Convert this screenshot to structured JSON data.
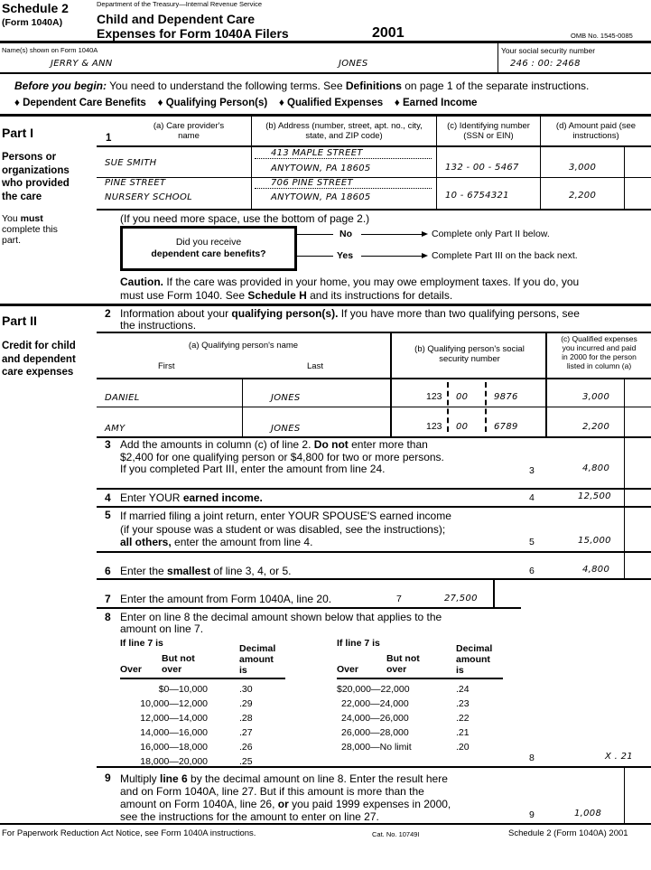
{
  "header": {
    "schedule": "Schedule 2",
    "form": "(Form 1040A)",
    "agency": "Department of the Treasury—Internal Revenue Service",
    "title_line1": "Child and Dependent Care",
    "title_line2": "Expenses for Form 1040A Filers",
    "year": "2001",
    "omb": "OMB No. 1545-0085"
  },
  "taxpayer": {
    "name_label": "Name(s) shown on Form 1040A",
    "first": "JERRY & ANN",
    "last": "JONES",
    "ssn_label": "Your social security number",
    "ssn": "246 : 00: 2468"
  },
  "intro": {
    "lead": "Before you begin:",
    "text1": " You need to understand the following terms. See ",
    "defs": "Definitions",
    "text2": " on page 1 of the separate instructions.",
    "terms": [
      "Dependent Care Benefits",
      "Qualifying Person(s)",
      "Qualified Expenses",
      "Earned Income"
    ]
  },
  "part1": {
    "title": "Part I",
    "subtitle": [
      "Persons or",
      "organizations",
      "who provided",
      "the care"
    ],
    "note": [
      "You must",
      "complete this",
      "part."
    ],
    "line_no": "1",
    "columns": [
      "(a) Care provider's name",
      "(b) Address (number, street, apt. no., city, state, and ZIP code)",
      "(c) Identifying number (SSN or EIN)",
      "(d) Amount paid (see instructions)"
    ],
    "rows": [
      {
        "name1": "SUE SMITH",
        "name2": "",
        "addr1": "413 MAPLE STREET",
        "addr2": "ANYTOWN, PA 18605",
        "id": "132 - 00 - 5467",
        "amount": "3,000"
      },
      {
        "name1": "PINE STREET",
        "name2": "NURSERY SCHOOL",
        "addr1": "706 PINE STREET",
        "addr2": "ANYTOWN, PA 18605",
        "id": "10 - 6754321",
        "amount": "2,200"
      }
    ],
    "more_space": "(If you need more space, use the bottom of page 2.)",
    "question1": "Did you receive",
    "question2": "dependent care benefits?",
    "no": "No",
    "no_action": "Complete only Part II below.",
    "yes": "Yes",
    "yes_action": "Complete Part III on the back next.",
    "caution_lead": "Caution.",
    "caution1": " If the care was provided in your home, you may owe employment taxes. If you do, you",
    "caution2a": "must use Form 1040. See ",
    "caution2b": "Schedule H",
    "caution2c": " and its instructions for details."
  },
  "part2": {
    "title": "Part II",
    "subtitle": [
      "Credit for child",
      "and dependent",
      "care expenses"
    ],
    "line2_no": "2",
    "line2a": "Information about your ",
    "line2b": "qualifying person(s).",
    "line2c": " If you have more than two qualifying persons, see",
    "line2d": "the instructions.",
    "col_a": "(a) Qualifying person's name",
    "col_first": "First",
    "col_last": "Last",
    "col_b": "(b) Qualifying person's social security number",
    "col_c": [
      "(c) Qualified expenses",
      "you incurred and paid",
      "in 2000 for the person",
      "listed in column (a)"
    ],
    "persons": [
      {
        "first": "DANIEL",
        "last": "JONES",
        "ssn1": "123",
        "ssn2": "00",
        "ssn3": "9876",
        "amount": "3,000"
      },
      {
        "first": "AMY",
        "last": "JONES",
        "ssn1": "123",
        "ssn2": "00",
        "ssn3": "6789",
        "amount": "2,200"
      }
    ],
    "line3": {
      "no": "3",
      "t1a": "Add the amounts in column (c) of line 2. ",
      "t1b": "Do not",
      "t1c": " enter more than",
      "t2": "$2,400 for one qualifying person or $4,800 for two or more persons.",
      "t3": "If you completed Part III, enter the amount from line 24.",
      "value": "4,800"
    },
    "line4": {
      "no": "4",
      "ta": "Enter YOUR ",
      "tb": "earned income.",
      "value": "12,500"
    },
    "line5": {
      "no": "5",
      "t1": "If married filing a joint return, enter YOUR SPOUSE'S earned income",
      "t2": "(if your spouse was a student or was disabled, see the instructions);",
      "t3a": "all others,",
      "t3b": " enter the amount from line 4.",
      "value": "15,000"
    },
    "line6": {
      "no": "6",
      "ta": "Enter the ",
      "tb": "smallest",
      "tc": " of line 3, 4, or 5.",
      "value": "4,800"
    },
    "line7": {
      "no": "7",
      "t": "Enter the amount from Form 1040A, line 20.",
      "value": "27,500"
    },
    "line8": {
      "no": "8",
      "t1": "Enter on line 8 the decimal amount shown below that applies to the",
      "t2": "amount on line 7.",
      "if_line": "If line 7 is",
      "over": "Over",
      "but_not": "But not",
      "over2": "over",
      "decimal": "Decimal",
      "amount": "amount",
      "is": "is",
      "left": [
        [
          "$0—10,000",
          ".30"
        ],
        [
          "10,000—12,000",
          ".29"
        ],
        [
          "12,000—14,000",
          ".28"
        ],
        [
          "14,000—16,000",
          ".27"
        ],
        [
          "16,000—18,000",
          ".26"
        ],
        [
          "18,000—20,000",
          ".25"
        ]
      ],
      "right": [
        [
          "$20,000—22,000",
          ".24"
        ],
        [
          "22,000—24,000",
          ".23"
        ],
        [
          "24,000—26,000",
          ".22"
        ],
        [
          "26,000—28,000",
          ".21"
        ],
        [
          "28,000—No limit",
          ".20"
        ]
      ],
      "value": "X . 21"
    },
    "line9": {
      "no": "9",
      "t1a": "Multiply ",
      "t1b": "line 6",
      "t1c": " by the decimal amount on line 8. Enter the result here",
      "t2": "and on Form 1040A, line 27. But if this amount is more than the",
      "t3a": "amount on Form 1040A, line 26, ",
      "t3b": "or",
      "t3c": " you paid 1999 expenses in 2000,",
      "t4": "see the instructions for the amount to enter on line 27.",
      "value": "1,008"
    }
  },
  "footer": {
    "notice": "For Paperwork Reduction Act Notice, see Form 1040A instructions.",
    "cat": "Cat. No. 10749I",
    "form": "Schedule 2 (Form 1040A) 2001"
  }
}
